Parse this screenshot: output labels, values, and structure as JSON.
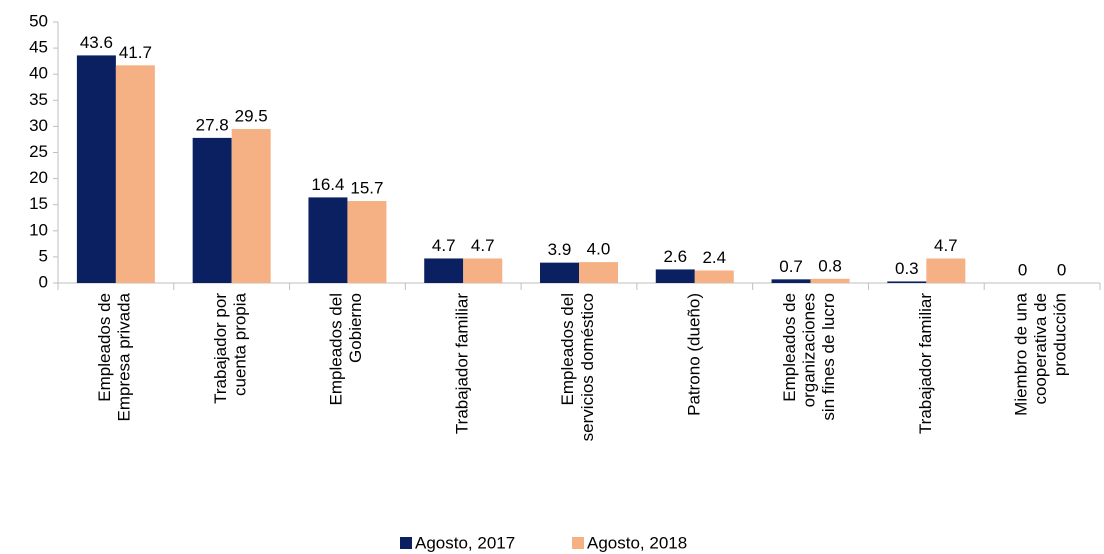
{
  "chart_data": {
    "type": "bar",
    "categories": [
      "Empleados de\nEmpresa privada",
      "Trabajador por\ncuenta propia",
      "Empleados del\nGobierno",
      "Trabajador familiar",
      "Empleados del\nservicios doméstico",
      "Patrono (dueño)",
      "Empleados de\norganizaciones\nsin fines de lucro",
      "Trabajador familiar",
      "Miembro de una\ncooperativa de\nproducción"
    ],
    "series": [
      {
        "name": "Agosto, 2017",
        "color": "#0b2060",
        "values": [
          43.6,
          27.8,
          16.4,
          4.7,
          3.9,
          2.6,
          0.7,
          0.3,
          0
        ]
      },
      {
        "name": "Agosto, 2018",
        "color": "#f5b183",
        "values": [
          41.7,
          29.5,
          15.7,
          4.7,
          4.0,
          2.4,
          0.8,
          4.7,
          0
        ],
        "value_labels": [
          "41.7",
          "29.5",
          "15.7",
          "4.7",
          "4.0",
          "2.4",
          "0.8",
          "4.7",
          "0"
        ]
      }
    ],
    "ylim": [
      0,
      50
    ],
    "yticks": [
      0,
      5,
      10,
      15,
      20,
      25,
      30,
      35,
      40,
      45,
      50
    ],
    "grid": false,
    "legend": "bottom"
  }
}
